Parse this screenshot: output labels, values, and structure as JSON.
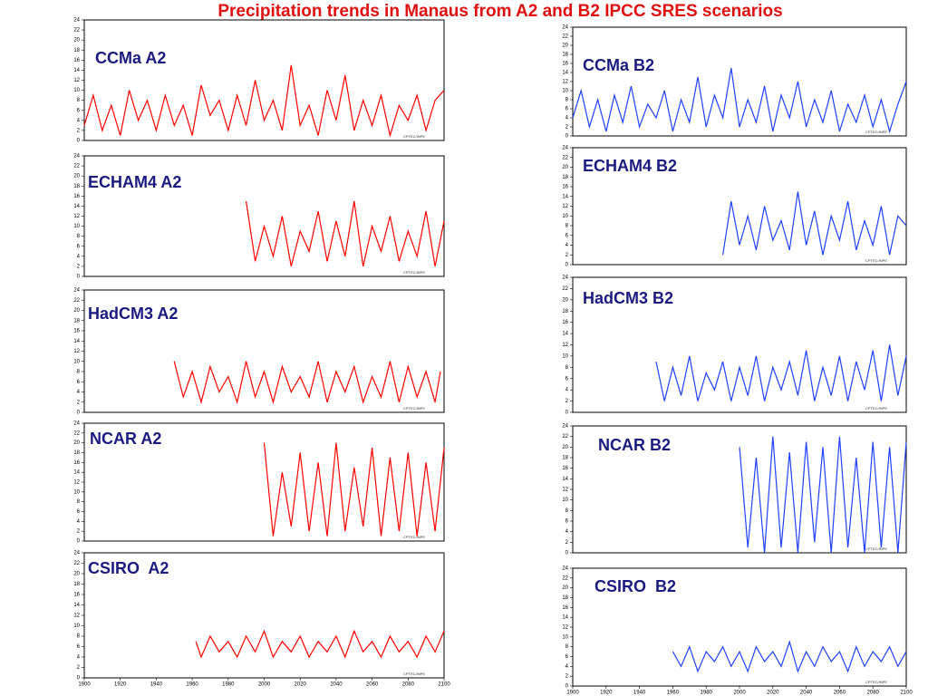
{
  "title": "Precipitation trends in Manaus from A2 and B2 IPCC SRES scenarios",
  "watermark": "CPTEC/INPE",
  "chart_data": [
    {
      "type": "line",
      "label": "CCMa A2",
      "color": "#ff0000",
      "xlim": [
        1900,
        2100
      ],
      "ylim": [
        0,
        24
      ],
      "yticks": [
        0,
        2,
        4,
        6,
        8,
        10,
        12,
        14,
        16,
        18,
        20,
        22,
        24
      ],
      "x": [
        1900,
        1905,
        1910,
        1915,
        1920,
        1925,
        1930,
        1935,
        1940,
        1945,
        1950,
        1955,
        1960,
        1965,
        1970,
        1975,
        1980,
        1985,
        1990,
        1995,
        2000,
        2005,
        2010,
        2015,
        2020,
        2025,
        2030,
        2035,
        2040,
        2045,
        2050,
        2055,
        2060,
        2065,
        2070,
        2075,
        2080,
        2085,
        2090,
        2095,
        2100
      ],
      "values": [
        3,
        9,
        2,
        7,
        1,
        10,
        4,
        8,
        2,
        9,
        3,
        7,
        1,
        11,
        5,
        8,
        2,
        9,
        3,
        12,
        4,
        8,
        2,
        15,
        3,
        7,
        1,
        10,
        4,
        13,
        2,
        8,
        3,
        9,
        1,
        7,
        4,
        9,
        2,
        8,
        10
      ]
    },
    {
      "type": "line",
      "label": "ECHAM4 A2",
      "color": "#ff0000",
      "xlim": [
        1900,
        2100
      ],
      "ylim": [
        0,
        24
      ],
      "yticks": [
        0,
        2,
        4,
        6,
        8,
        10,
        12,
        14,
        16,
        18,
        20,
        22,
        24
      ],
      "x": [
        1990,
        1995,
        2000,
        2005,
        2010,
        2015,
        2020,
        2025,
        2030,
        2035,
        2040,
        2045,
        2050,
        2055,
        2060,
        2065,
        2070,
        2075,
        2080,
        2085,
        2090,
        2095,
        2100
      ],
      "values": [
        15,
        3,
        10,
        4,
        12,
        2,
        9,
        5,
        13,
        3,
        11,
        4,
        15,
        2,
        10,
        5,
        12,
        3,
        9,
        4,
        13,
        2,
        11
      ]
    },
    {
      "type": "line",
      "label": "HadCM3 A2",
      "color": "#ff0000",
      "xlim": [
        1900,
        2100
      ],
      "ylim": [
        0,
        24
      ],
      "yticks": [
        0,
        2,
        4,
        6,
        8,
        10,
        12,
        14,
        16,
        18,
        20,
        22,
        24
      ],
      "x": [
        1950,
        1955,
        1960,
        1965,
        1970,
        1975,
        1980,
        1985,
        1990,
        1995,
        2000,
        2005,
        2010,
        2015,
        2020,
        2025,
        2030,
        2035,
        2040,
        2045,
        2050,
        2055,
        2060,
        2065,
        2070,
        2075,
        2080,
        2085,
        2090,
        2095,
        2098
      ],
      "values": [
        10,
        3,
        8,
        2,
        9,
        4,
        7,
        2,
        10,
        3,
        8,
        2,
        9,
        4,
        7,
        3,
        10,
        2,
        8,
        4,
        9,
        2,
        7,
        3,
        10,
        2,
        9,
        3,
        8,
        2,
        8
      ]
    },
    {
      "type": "line",
      "label": "NCAR A2",
      "color": "#ff0000",
      "xlim": [
        1900,
        2100
      ],
      "ylim": [
        0,
        24
      ],
      "yticks": [
        0,
        2,
        4,
        6,
        8,
        10,
        12,
        14,
        16,
        18,
        20,
        22,
        24
      ],
      "x": [
        2000,
        2005,
        2010,
        2015,
        2020,
        2025,
        2030,
        2035,
        2040,
        2045,
        2050,
        2055,
        2060,
        2065,
        2070,
        2075,
        2080,
        2085,
        2090,
        2095,
        2100
      ],
      "values": [
        20,
        1,
        14,
        3,
        18,
        2,
        16,
        1,
        20,
        2,
        15,
        3,
        19,
        1,
        17,
        2,
        18,
        1,
        16,
        2,
        19
      ]
    },
    {
      "type": "line",
      "label": "CSIRO  A2",
      "color": "#ff0000",
      "xlim": [
        1900,
        2100
      ],
      "ylim": [
        0,
        24
      ],
      "yticks": [
        0,
        2,
        4,
        6,
        8,
        10,
        12,
        14,
        16,
        18,
        20,
        22,
        24
      ],
      "xticks": [
        1900,
        1920,
        1940,
        1960,
        1980,
        2000,
        2020,
        2040,
        2060,
        2080,
        2100
      ],
      "x": [
        1962,
        1965,
        1970,
        1975,
        1980,
        1985,
        1990,
        1995,
        2000,
        2005,
        2010,
        2015,
        2020,
        2025,
        2030,
        2035,
        2040,
        2045,
        2050,
        2055,
        2060,
        2065,
        2070,
        2075,
        2080,
        2085,
        2090,
        2095,
        2100
      ],
      "values": [
        7,
        4,
        8,
        5,
        7,
        4,
        8,
        5,
        9,
        4,
        7,
        5,
        8,
        4,
        7,
        5,
        8,
        4,
        9,
        5,
        7,
        4,
        8,
        5,
        7,
        4,
        8,
        5,
        9
      ]
    },
    {
      "type": "line",
      "label": "CCMa B2",
      "color": "#2040ff",
      "xlim": [
        1900,
        2100
      ],
      "ylim": [
        0,
        24
      ],
      "yticks": [
        0,
        2,
        4,
        6,
        8,
        10,
        12,
        14,
        16,
        18,
        20,
        22,
        24
      ],
      "x": [
        1900,
        1905,
        1910,
        1915,
        1920,
        1925,
        1930,
        1935,
        1940,
        1945,
        1950,
        1955,
        1960,
        1965,
        1970,
        1975,
        1980,
        1985,
        1990,
        1995,
        2000,
        2005,
        2010,
        2015,
        2020,
        2025,
        2030,
        2035,
        2040,
        2045,
        2050,
        2055,
        2060,
        2065,
        2070,
        2075,
        2080,
        2085,
        2090,
        2095,
        2100
      ],
      "values": [
        4,
        10,
        2,
        8,
        1,
        9,
        3,
        11,
        2,
        7,
        4,
        10,
        1,
        8,
        3,
        13,
        2,
        9,
        4,
        15,
        2,
        8,
        3,
        11,
        1,
        9,
        4,
        12,
        2,
        8,
        3,
        10,
        1,
        7,
        3,
        9,
        2,
        8,
        1,
        7,
        12
      ]
    },
    {
      "type": "line",
      "label": "ECHAM4 B2",
      "color": "#2040ff",
      "xlim": [
        1900,
        2100
      ],
      "ylim": [
        0,
        24
      ],
      "yticks": [
        0,
        2,
        4,
        6,
        8,
        10,
        12,
        14,
        16,
        18,
        20,
        22,
        24
      ],
      "x": [
        1990,
        1995,
        2000,
        2005,
        2010,
        2015,
        2020,
        2025,
        2030,
        2035,
        2040,
        2045,
        2050,
        2055,
        2060,
        2065,
        2070,
        2075,
        2080,
        2085,
        2090,
        2095,
        2100
      ],
      "values": [
        2,
        13,
        4,
        10,
        3,
        12,
        5,
        9,
        3,
        15,
        4,
        11,
        2,
        10,
        5,
        13,
        3,
        9,
        4,
        12,
        2,
        10,
        8
      ]
    },
    {
      "type": "line",
      "label": "HadCM3 B2",
      "color": "#2040ff",
      "xlim": [
        1900,
        2100
      ],
      "ylim": [
        0,
        24
      ],
      "yticks": [
        0,
        2,
        4,
        6,
        8,
        10,
        12,
        14,
        16,
        18,
        20,
        22,
        24
      ],
      "x": [
        1950,
        1955,
        1960,
        1965,
        1970,
        1975,
        1980,
        1985,
        1990,
        1995,
        2000,
        2005,
        2010,
        2015,
        2020,
        2025,
        2030,
        2035,
        2040,
        2045,
        2050,
        2055,
        2060,
        2065,
        2070,
        2075,
        2080,
        2085,
        2090,
        2095,
        2100
      ],
      "values": [
        9,
        2,
        8,
        3,
        10,
        2,
        7,
        4,
        9,
        2,
        8,
        3,
        10,
        2,
        8,
        4,
        9,
        3,
        11,
        2,
        8,
        3,
        10,
        2,
        9,
        4,
        11,
        2,
        12,
        3,
        10
      ]
    },
    {
      "type": "line",
      "label": "NCAR B2",
      "color": "#2040ff",
      "xlim": [
        1900,
        2100
      ],
      "ylim": [
        0,
        24
      ],
      "yticks": [
        0,
        2,
        4,
        6,
        8,
        10,
        12,
        14,
        16,
        18,
        20,
        22,
        24
      ],
      "x": [
        2000,
        2005,
        2010,
        2015,
        2020,
        2025,
        2030,
        2035,
        2040,
        2045,
        2050,
        2055,
        2060,
        2065,
        2070,
        2075,
        2080,
        2085,
        2090,
        2095,
        2100
      ],
      "values": [
        20,
        1,
        18,
        0,
        22,
        1,
        19,
        0,
        21,
        2,
        20,
        0,
        22,
        1,
        18,
        0,
        21,
        1,
        20,
        0,
        21
      ]
    },
    {
      "type": "line",
      "label": "CSIRO  B2",
      "color": "#2040ff",
      "xlim": [
        1900,
        2100
      ],
      "ylim": [
        0,
        24
      ],
      "yticks": [
        0,
        2,
        4,
        6,
        8,
        10,
        12,
        14,
        16,
        18,
        20,
        22,
        24
      ],
      "xticks": [
        1900,
        1920,
        1940,
        1960,
        1980,
        2000,
        2020,
        2040,
        2060,
        2080,
        2100
      ],
      "x": [
        1960,
        1965,
        1970,
        1975,
        1980,
        1985,
        1990,
        1995,
        2000,
        2005,
        2010,
        2015,
        2020,
        2025,
        2030,
        2035,
        2040,
        2045,
        2050,
        2055,
        2060,
        2065,
        2070,
        2075,
        2080,
        2085,
        2090,
        2095,
        2100
      ],
      "values": [
        7,
        4,
        8,
        3,
        7,
        5,
        8,
        4,
        7,
        3,
        8,
        5,
        7,
        4,
        9,
        3,
        7,
        4,
        8,
        5,
        7,
        3,
        8,
        4,
        7,
        5,
        8,
        4,
        7
      ]
    }
  ]
}
